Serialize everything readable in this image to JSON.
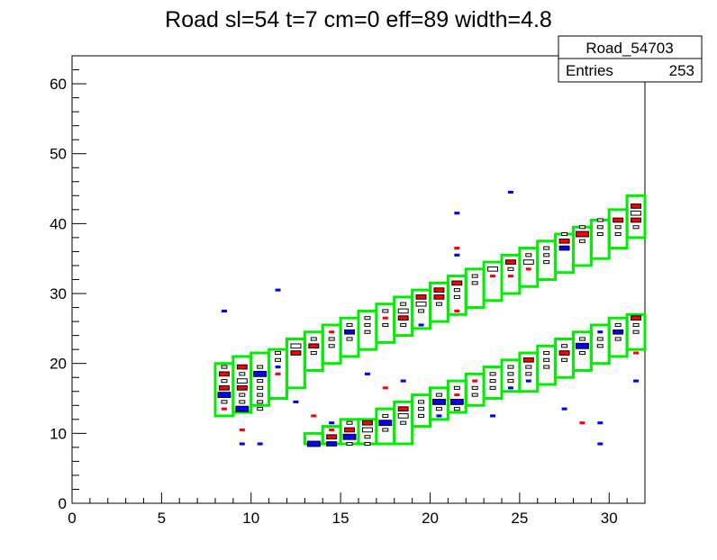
{
  "chart_data": {
    "type": "heatmap",
    "title": "Road sl=54 t=7 cm=0 eff=89 width=4.8",
    "xlabel": "",
    "ylabel": "",
    "xlim": [
      0,
      32
    ],
    "ylim": [
      0,
      64
    ],
    "x_ticks": [
      0,
      5,
      10,
      15,
      20,
      25,
      30
    ],
    "y_ticks": [
      0,
      10,
      20,
      30,
      40,
      50,
      60
    ],
    "stats_box": {
      "name": "Road_54703",
      "entries_label": "Entries",
      "entries_value": "253"
    },
    "colors": {
      "road_outline": "#00ee00",
      "hit_red": "#ff0000",
      "hit_blue": "#0000ff",
      "hit_empty": "#000000"
    },
    "roads": [
      {
        "name": "upper",
        "segments": [
          [
            8,
            12.5,
            20
          ],
          [
            9,
            13,
            21
          ],
          [
            10,
            14,
            21.5
          ],
          [
            11,
            15,
            22
          ],
          [
            12,
            16.5,
            23.5
          ],
          [
            13,
            19,
            24.5
          ],
          [
            14,
            20,
            25.5
          ],
          [
            15,
            21,
            26.5
          ],
          [
            16,
            22,
            27.5
          ],
          [
            17,
            23,
            28.5
          ],
          [
            18,
            24,
            29.5
          ],
          [
            19,
            25,
            30.5
          ],
          [
            20,
            26,
            31.5
          ],
          [
            21,
            27,
            32.5
          ],
          [
            22,
            28,
            33.5
          ],
          [
            23,
            29,
            34.5
          ],
          [
            24,
            30,
            35.5
          ],
          [
            25,
            31,
            36.5
          ],
          [
            26,
            32,
            37.5
          ],
          [
            27,
            33,
            38.5
          ],
          [
            28,
            34,
            39.5
          ],
          [
            29,
            35,
            40.5
          ],
          [
            30,
            36.5,
            42
          ],
          [
            31,
            38,
            44
          ]
        ]
      },
      {
        "name": "lower",
        "segments": [
          [
            13,
            8.5,
            10
          ],
          [
            14,
            8.5,
            11
          ],
          [
            15,
            8.5,
            12
          ],
          [
            16,
            8.5,
            12
          ],
          [
            17,
            8.5,
            13.5
          ],
          [
            18,
            8.5,
            14.5
          ],
          [
            19,
            11,
            15.5
          ],
          [
            20,
            12,
            16.5
          ],
          [
            21,
            13,
            17.5
          ],
          [
            22,
            14,
            18.5
          ],
          [
            23,
            15,
            19.5
          ],
          [
            24,
            16,
            20.5
          ],
          [
            25,
            16,
            21.5
          ],
          [
            26,
            17,
            22.5
          ],
          [
            27,
            18,
            23.5
          ],
          [
            28,
            19,
            24.5
          ],
          [
            29,
            20,
            25.5
          ],
          [
            30,
            21,
            26.5
          ],
          [
            31,
            22,
            27
          ]
        ]
      }
    ],
    "cells": [
      [
        8,
        19.5,
        1,
        "k"
      ],
      [
        8,
        18.5,
        2,
        "r"
      ],
      [
        8,
        17.5,
        1,
        "k"
      ],
      [
        8,
        16.5,
        2,
        "r"
      ],
      [
        8,
        15.5,
        3,
        "b"
      ],
      [
        8,
        14.5,
        1,
        "k"
      ],
      [
        8,
        13.5,
        1,
        "r"
      ],
      [
        9,
        19.5,
        2,
        "r"
      ],
      [
        9,
        18.5,
        1,
        "k"
      ],
      [
        9,
        17.5,
        2,
        "k"
      ],
      [
        9,
        16.5,
        2,
        "r"
      ],
      [
        9,
        15.5,
        1,
        "k"
      ],
      [
        9,
        14.5,
        1,
        "k"
      ],
      [
        9,
        13.5,
        3,
        "b"
      ],
      [
        9,
        10.5,
        1,
        "r"
      ],
      [
        9,
        8.5,
        1,
        "b"
      ],
      [
        8,
        27.5,
        1,
        "b"
      ],
      [
        10,
        19.5,
        1,
        "k"
      ],
      [
        10,
        18.5,
        3,
        "b"
      ],
      [
        10,
        17.5,
        1,
        "k"
      ],
      [
        10,
        16.5,
        1,
        "k"
      ],
      [
        10,
        15.5,
        1,
        "k"
      ],
      [
        10,
        14.5,
        1,
        "k"
      ],
      [
        10,
        13.5,
        1,
        "k"
      ],
      [
        10,
        8.5,
        1,
        "b"
      ],
      [
        11,
        21.5,
        1,
        "k"
      ],
      [
        11,
        20.5,
        1,
        "k"
      ],
      [
        11,
        19.5,
        1,
        "b"
      ],
      [
        11,
        18.5,
        1,
        "r"
      ],
      [
        11,
        30.5,
        1,
        "b"
      ],
      [
        12,
        22.5,
        2,
        "k"
      ],
      [
        12,
        21.5,
        2,
        "r"
      ],
      [
        12,
        14.5,
        1,
        "b"
      ],
      [
        13,
        23.5,
        1,
        "k"
      ],
      [
        13,
        22.5,
        2,
        "r"
      ],
      [
        13,
        21.5,
        1,
        "k"
      ],
      [
        13,
        12.5,
        1,
        "r"
      ],
      [
        13,
        8.5,
        3,
        "b"
      ],
      [
        14,
        24.5,
        1,
        "r"
      ],
      [
        14,
        23.5,
        1,
        "k"
      ],
      [
        14,
        22.5,
        1,
        "k"
      ],
      [
        14,
        11.5,
        1,
        "b"
      ],
      [
        14,
        10.5,
        1,
        "r"
      ],
      [
        14,
        9.5,
        2,
        "r"
      ],
      [
        14,
        8.5,
        2,
        "b"
      ],
      [
        15,
        25.5,
        1,
        "k"
      ],
      [
        15,
        24.5,
        2,
        "b"
      ],
      [
        15,
        23.5,
        1,
        "k"
      ],
      [
        15,
        11.5,
        1,
        "k"
      ],
      [
        15,
        10.5,
        2,
        "r"
      ],
      [
        15,
        9.5,
        3,
        "b"
      ],
      [
        15,
        8.5,
        1,
        "k"
      ],
      [
        16,
        26.5,
        1,
        "k"
      ],
      [
        16,
        25.5,
        1,
        "k"
      ],
      [
        16,
        24.5,
        1,
        "k"
      ],
      [
        16,
        18.5,
        1,
        "b"
      ],
      [
        16,
        11.5,
        2,
        "r"
      ],
      [
        16,
        10.5,
        2,
        "k"
      ],
      [
        16,
        9.5,
        1,
        "k"
      ],
      [
        16,
        8.5,
        1,
        "k"
      ],
      [
        17,
        27.5,
        1,
        "k"
      ],
      [
        17,
        26.5,
        1,
        "r"
      ],
      [
        17,
        25.5,
        1,
        "k"
      ],
      [
        17,
        16.5,
        1,
        "r"
      ],
      [
        17,
        12.5,
        1,
        "k"
      ],
      [
        17,
        11.5,
        3,
        "b"
      ],
      [
        17,
        10.5,
        1,
        "k"
      ],
      [
        18,
        28.5,
        1,
        "k"
      ],
      [
        18,
        27.5,
        2,
        "k"
      ],
      [
        18,
        26.5,
        2,
        "r"
      ],
      [
        18,
        25.5,
        1,
        "k"
      ],
      [
        18,
        17.5,
        1,
        "b"
      ],
      [
        18,
        13.5,
        2,
        "r"
      ],
      [
        18,
        12.5,
        2,
        "k"
      ],
      [
        18,
        11.5,
        1,
        "k"
      ],
      [
        19,
        29.5,
        2,
        "r"
      ],
      [
        19,
        28.5,
        2,
        "k"
      ],
      [
        19,
        27.5,
        1,
        "k"
      ],
      [
        19,
        25.5,
        1,
        "b"
      ],
      [
        19,
        14.5,
        1,
        "k"
      ],
      [
        19,
        13.5,
        1,
        "k"
      ],
      [
        19,
        12.5,
        1,
        "k"
      ],
      [
        20,
        30.5,
        2,
        "r"
      ],
      [
        20,
        29.5,
        2,
        "r"
      ],
      [
        20,
        28.5,
        1,
        "k"
      ],
      [
        20,
        15.5,
        1,
        "k"
      ],
      [
        20,
        14.5,
        3,
        "b"
      ],
      [
        20,
        13.5,
        1,
        "k"
      ],
      [
        20,
        12.5,
        1,
        "b"
      ],
      [
        21,
        41.5,
        1,
        "b"
      ],
      [
        21,
        36.5,
        1,
        "r"
      ],
      [
        21,
        35.5,
        1,
        "b"
      ],
      [
        21,
        31.5,
        2,
        "r"
      ],
      [
        21,
        30.5,
        1,
        "k"
      ],
      [
        21,
        29.5,
        1,
        "k"
      ],
      [
        21,
        27.5,
        1,
        "r"
      ],
      [
        21,
        16.5,
        1,
        "k"
      ],
      [
        21,
        15.5,
        1,
        "r"
      ],
      [
        21,
        14.5,
        3,
        "b"
      ],
      [
        21,
        13.5,
        1,
        "k"
      ],
      [
        22,
        32.5,
        1,
        "k"
      ],
      [
        22,
        31.5,
        1,
        "k"
      ],
      [
        22,
        17.5,
        1,
        "r"
      ],
      [
        22,
        16.5,
        1,
        "k"
      ],
      [
        22,
        15.5,
        1,
        "k"
      ],
      [
        23,
        33.5,
        2,
        "k"
      ],
      [
        23,
        32.5,
        1,
        "r"
      ],
      [
        23,
        18.5,
        1,
        "k"
      ],
      [
        23,
        17.5,
        1,
        "k"
      ],
      [
        23,
        16.5,
        1,
        "k"
      ],
      [
        23,
        12.5,
        1,
        "b"
      ],
      [
        24,
        34.5,
        2,
        "r"
      ],
      [
        24,
        33.5,
        1,
        "k"
      ],
      [
        24,
        32.5,
        1,
        "r"
      ],
      [
        24,
        44.5,
        1,
        "b"
      ],
      [
        24,
        19.5,
        1,
        "k"
      ],
      [
        24,
        18.5,
        1,
        "k"
      ],
      [
        24,
        17.5,
        1,
        "k"
      ],
      [
        24,
        16.5,
        1,
        "b"
      ],
      [
        25,
        35.5,
        1,
        "k"
      ],
      [
        25,
        34.5,
        2,
        "k"
      ],
      [
        25,
        33.5,
        1,
        "r"
      ],
      [
        25,
        20.5,
        2,
        "r"
      ],
      [
        25,
        19.5,
        1,
        "k"
      ],
      [
        25,
        18.5,
        1,
        "k"
      ],
      [
        25,
        17.5,
        1,
        "b"
      ],
      [
        26,
        36.5,
        1,
        "k"
      ],
      [
        26,
        35.5,
        1,
        "k"
      ],
      [
        26,
        34.5,
        1,
        "k"
      ],
      [
        26,
        21.5,
        1,
        "k"
      ],
      [
        26,
        20.5,
        1,
        "k"
      ],
      [
        26,
        19.5,
        1,
        "k"
      ],
      [
        27,
        38.5,
        1,
        "k"
      ],
      [
        27,
        37.5,
        2,
        "r"
      ],
      [
        27,
        36.5,
        2,
        "b"
      ],
      [
        27,
        22.5,
        1,
        "k"
      ],
      [
        27,
        21.5,
        2,
        "r"
      ],
      [
        27,
        20.5,
        1,
        "k"
      ],
      [
        27,
        13.5,
        1,
        "b"
      ],
      [
        28,
        39.5,
        1,
        "k"
      ],
      [
        28,
        38.5,
        3,
        "r"
      ],
      [
        28,
        37.5,
        1,
        "k"
      ],
      [
        28,
        23.5,
        1,
        "k"
      ],
      [
        28,
        22.5,
        3,
        "b"
      ],
      [
        28,
        21.5,
        1,
        "k"
      ],
      [
        28,
        11.5,
        1,
        "r"
      ],
      [
        29,
        40.5,
        1,
        "k"
      ],
      [
        29,
        39.5,
        1,
        "k"
      ],
      [
        29,
        38.5,
        1,
        "k"
      ],
      [
        29,
        24.5,
        1,
        "b"
      ],
      [
        29,
        23.5,
        1,
        "k"
      ],
      [
        29,
        22.5,
        1,
        "k"
      ],
      [
        29,
        11.5,
        1,
        "b"
      ],
      [
        29,
        8.5,
        1,
        "b"
      ],
      [
        30,
        40.5,
        2,
        "r"
      ],
      [
        30,
        39.5,
        1,
        "k"
      ],
      [
        30,
        38.5,
        1,
        "k"
      ],
      [
        30,
        25.5,
        1,
        "k"
      ],
      [
        30,
        24.5,
        2,
        "b"
      ],
      [
        30,
        23.5,
        1,
        "k"
      ],
      [
        31,
        42.5,
        2,
        "r"
      ],
      [
        31,
        41.5,
        2,
        "k"
      ],
      [
        31,
        40.5,
        2,
        "r"
      ],
      [
        31,
        39.5,
        1,
        "k"
      ],
      [
        31,
        26.5,
        2,
        "r"
      ],
      [
        31,
        25.5,
        1,
        "k"
      ],
      [
        31,
        24.5,
        1,
        "k"
      ],
      [
        31,
        21.5,
        1,
        "r"
      ],
      [
        31,
        17.5,
        1,
        "b"
      ]
    ]
  }
}
